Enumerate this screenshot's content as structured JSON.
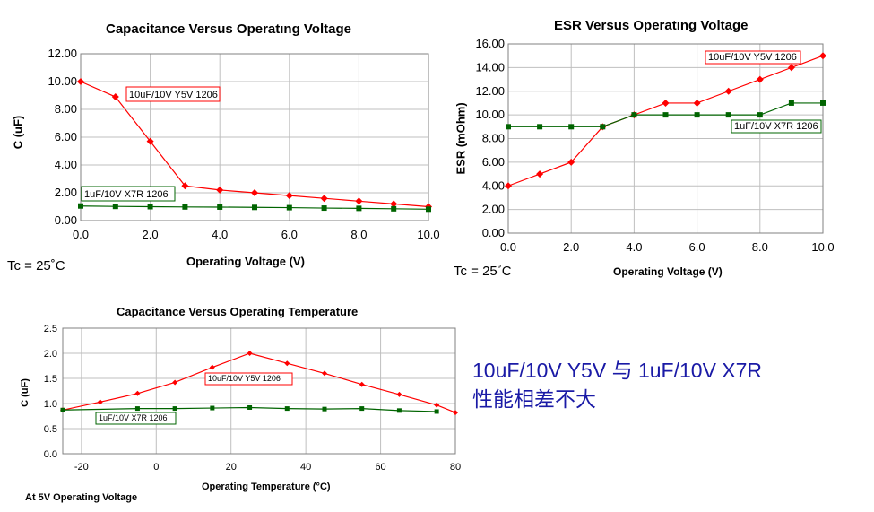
{
  "colors": {
    "y5v": "#ff0000",
    "x7r": "#006400",
    "grid": "#bfbfbf",
    "text_blue": "#1a1aa6"
  },
  "summary": {
    "line1": "10uF/10V Y5V 与 1uF/10V X7R",
    "line2": "性能相差不大"
  },
  "chart_data": [
    {
      "id": "cap-voltage",
      "type": "line",
      "title": "Capacitance Versus Operatıng Voltage",
      "xlabel": "Operating Voltage (V)",
      "ylabel": "C (uF)",
      "note": "Tc = 25˚C",
      "xlim": [
        0,
        10
      ],
      "ylim": [
        0,
        12
      ],
      "xticks": [
        0,
        2,
        4,
        6,
        8,
        10
      ],
      "xtick_labels": [
        "0.0",
        "2.0",
        "4.0",
        "6.0",
        "8.0",
        "10.0"
      ],
      "yticks": [
        0,
        2,
        4,
        6,
        8,
        10,
        12
      ],
      "ytick_labels": [
        "0.00",
        "2.00",
        "4.00",
        "6.00",
        "8.00",
        "10.00",
        "12.00"
      ],
      "series": [
        {
          "name": "10uF/10V Y5V 1206",
          "x": [
            0,
            1,
            2,
            3,
            4,
            5,
            6,
            7,
            8,
            9,
            10
          ],
          "values": [
            10.0,
            8.9,
            5.7,
            2.5,
            2.2,
            2.0,
            1.8,
            1.6,
            1.4,
            1.2,
            1.0
          ]
        },
        {
          "name": "1uF/10V X7R 1206",
          "x": [
            0,
            1,
            2,
            3,
            4,
            5,
            6,
            7,
            8,
            9,
            10
          ],
          "values": [
            1.05,
            1.02,
            1.0,
            0.98,
            0.97,
            0.95,
            0.93,
            0.9,
            0.88,
            0.85,
            0.82
          ]
        }
      ]
    },
    {
      "id": "esr-voltage",
      "type": "line",
      "title": "ESR Versus Operatıng Voltage",
      "xlabel": "Operating Voltage (V)",
      "ylabel": "ESR (mOhm)",
      "note": "Tc = 25˚C",
      "xlim": [
        0,
        10
      ],
      "ylim": [
        0,
        16
      ],
      "xticks": [
        0,
        2,
        4,
        6,
        8,
        10
      ],
      "xtick_labels": [
        "0.0",
        "2.0",
        "4.0",
        "6.0",
        "8.0",
        "10.0"
      ],
      "yticks": [
        0,
        2,
        4,
        6,
        8,
        10,
        12,
        14,
        16
      ],
      "ytick_labels": [
        "0.00",
        "2.00",
        "4.00",
        "6.00",
        "8.00",
        "10.00",
        "12.00",
        "14.00",
        "16.00"
      ],
      "series": [
        {
          "name": "10uF/10V Y5V 1206",
          "x": [
            0,
            1,
            2,
            3,
            4,
            5,
            6,
            7,
            8,
            9,
            10
          ],
          "values": [
            4,
            5,
            6,
            9,
            10,
            11,
            11,
            12,
            13,
            14,
            15
          ]
        },
        {
          "name": "1uF/10V X7R 1206",
          "x": [
            0,
            1,
            2,
            3,
            4,
            5,
            6,
            7,
            8,
            9,
            10
          ],
          "values": [
            9,
            9,
            9,
            9,
            10,
            10,
            10,
            10,
            10,
            11,
            11
          ]
        }
      ]
    },
    {
      "id": "cap-temperature",
      "type": "line",
      "title": "Capacitance Versus Operating Temperature",
      "xlabel": "Operating Temperature (°C)",
      "ylabel": "C (uF)",
      "note": "At 5V Operating Voltage",
      "xlim": [
        -25,
        80
      ],
      "ylim": [
        0,
        2.5
      ],
      "xticks": [
        -20,
        0,
        20,
        40,
        60,
        80
      ],
      "xtick_labels": [
        "-20",
        "0",
        "20",
        "40",
        "60",
        "80"
      ],
      "yticks": [
        0,
        0.5,
        1,
        1.5,
        2,
        2.5
      ],
      "ytick_labels": [
        "0.0",
        "0.5",
        "1.0",
        "1.5",
        "2.0",
        "2.5"
      ],
      "series": [
        {
          "name": "10uF/10V Y5V 1206",
          "x": [
            -25,
            -15,
            -5,
            5,
            15,
            25,
            35,
            45,
            55,
            65,
            75,
            80
          ],
          "values": [
            0.87,
            1.03,
            1.2,
            1.42,
            1.72,
            2.0,
            1.8,
            1.6,
            1.38,
            1.18,
            0.97,
            0.82
          ]
        },
        {
          "name": "1uF/10V X7R 1206",
          "x": [
            -25,
            -5,
            5,
            15,
            25,
            35,
            45,
            55,
            65,
            75
          ],
          "values": [
            0.87,
            0.9,
            0.9,
            0.91,
            0.92,
            0.9,
            0.89,
            0.9,
            0.86,
            0.84
          ]
        }
      ]
    }
  ]
}
